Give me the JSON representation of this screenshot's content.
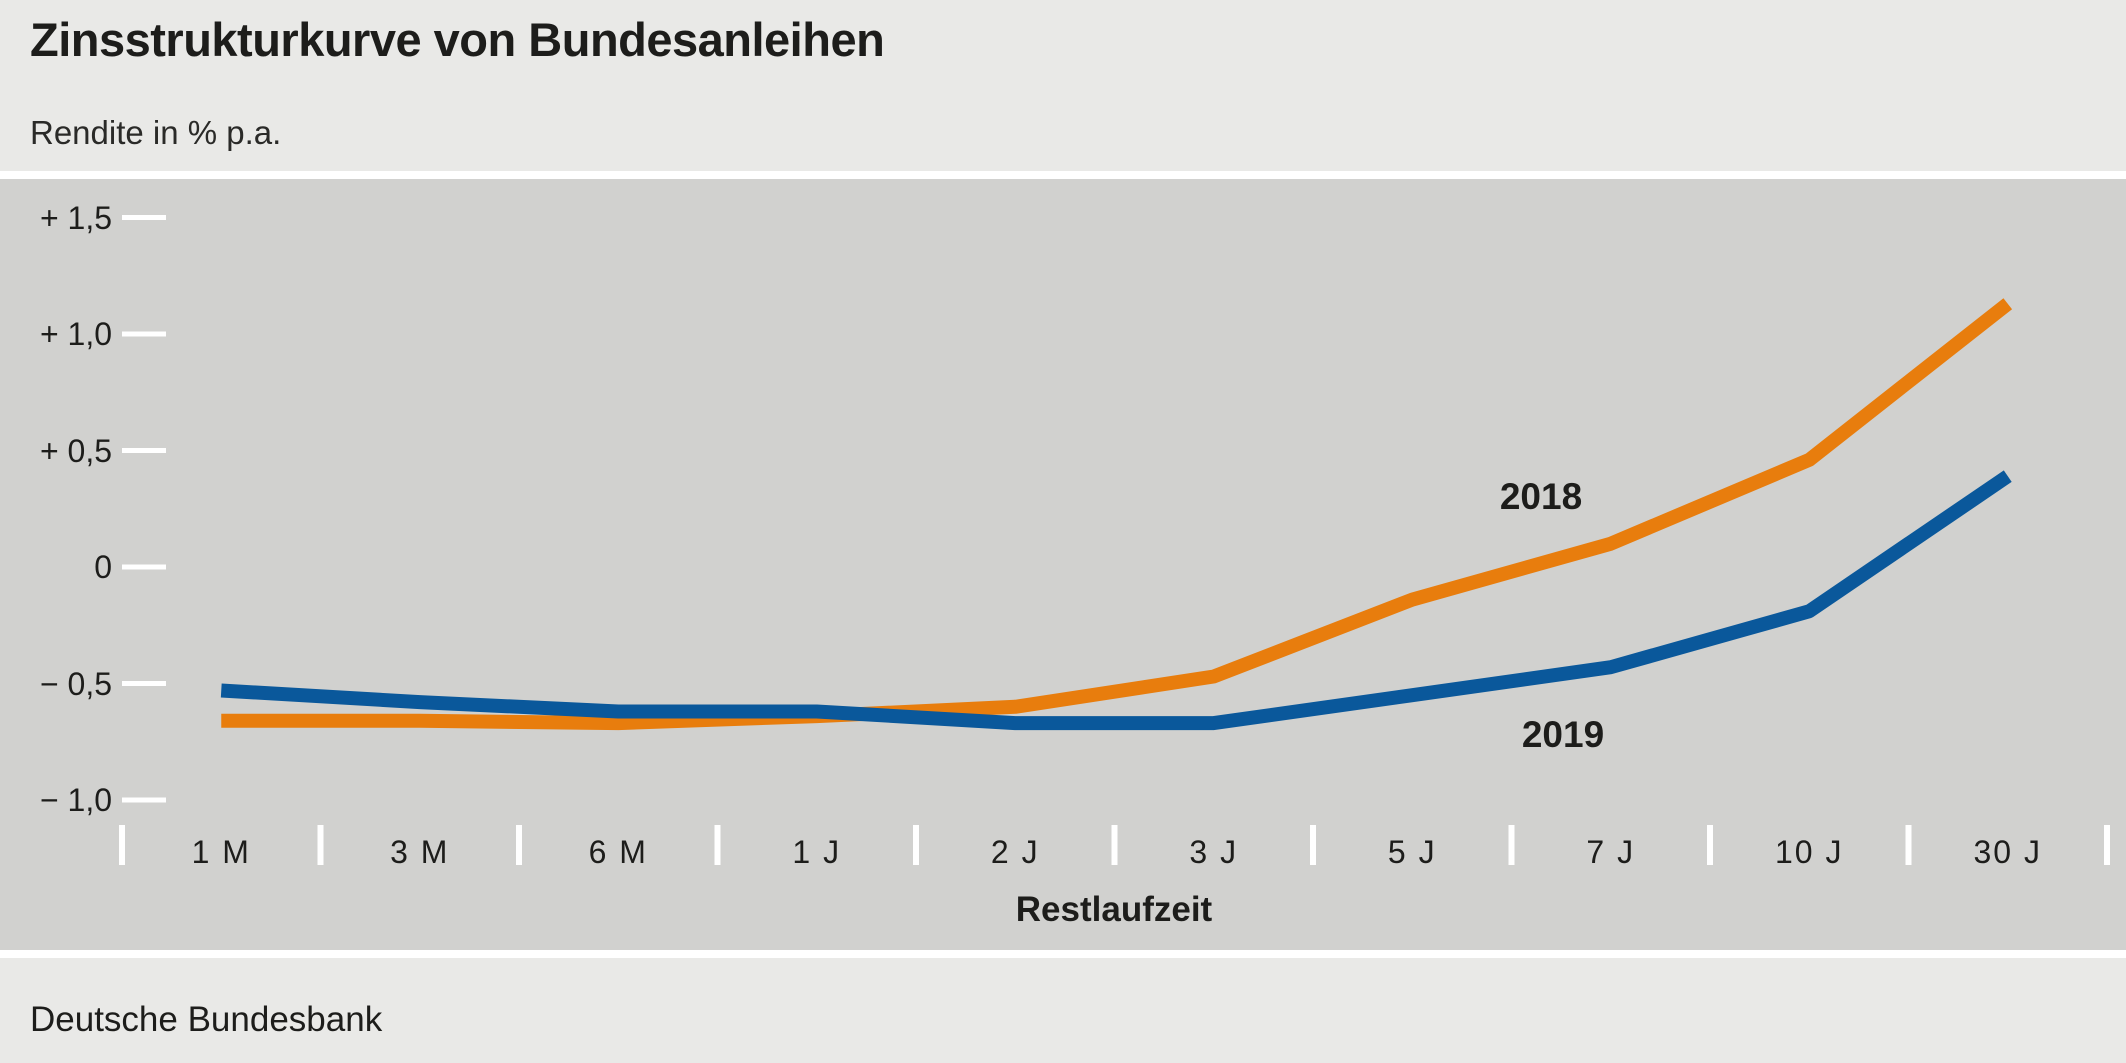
{
  "page": {
    "footer": "Deutsche Bundesbank"
  },
  "chart_data": {
    "type": "line",
    "title": "Zinsstrukturkurve von Bundesanleihen",
    "subtitle": "Rendite in % p.a.",
    "xlabel": "Restlaufzeit",
    "categories": [
      "1 M",
      "3 M",
      "6 M",
      "1 J",
      "2 J",
      "3 J",
      "5 J",
      "7 J",
      "10 J",
      "30 J"
    ],
    "y_ticks": [
      {
        "label": "+ 1,5",
        "value": 1.5
      },
      {
        "label": "+ 1,0",
        "value": 1.0
      },
      {
        "label": "+ 0,5",
        "value": 0.5
      },
      {
        "label": "0",
        "value": 0
      },
      {
        "label": "− 0,5",
        "value": -0.5
      },
      {
        "label": "− 1,0",
        "value": -1.0
      }
    ],
    "ylim": [
      -1.1,
      1.65
    ],
    "grid": false,
    "legend": "inline-labels",
    "series": [
      {
        "name": "2018",
        "color": "#e87d0d",
        "values": [
          -0.66,
          -0.66,
          -0.67,
          -0.64,
          -0.6,
          -0.47,
          -0.14,
          0.1,
          0.46,
          1.13
        ]
      },
      {
        "name": "2019",
        "color": "#0a589b",
        "values": [
          -0.53,
          -0.58,
          -0.62,
          -0.62,
          -0.67,
          -0.67,
          -0.55,
          -0.43,
          -0.19,
          0.39
        ]
      }
    ],
    "colors": {
      "plot_bg": "#d1d1cf",
      "page_bg": "#e9e9e7",
      "tick": "#ffffff",
      "text": "#1d1d1b"
    }
  }
}
